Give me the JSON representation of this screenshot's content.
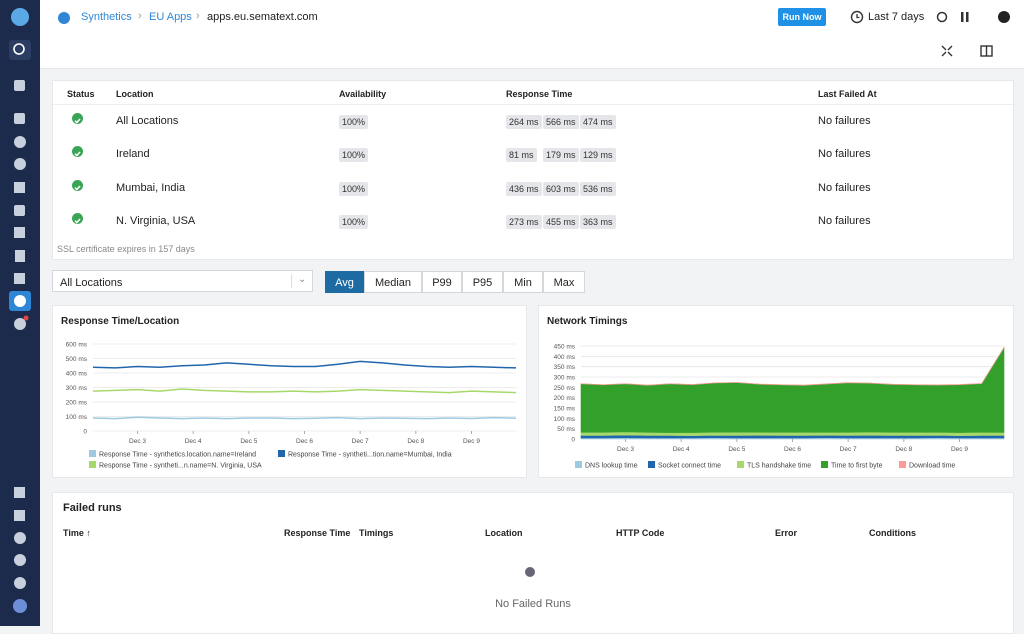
{
  "breadcrumb": [
    "Synthetics",
    "EU Apps",
    "apps.eu.sematext.com"
  ],
  "header": {
    "run_now": "Run Now",
    "time_range": "Last 7 days"
  },
  "status_table": {
    "headers": [
      "Status",
      "Location",
      "Availability",
      "Response Time",
      "Last Failed At"
    ],
    "rows": [
      {
        "location": "All Locations",
        "availability": "100%",
        "response_times": [
          "264 ms",
          "566 ms",
          "474 ms"
        ],
        "last_failed": "No failures"
      },
      {
        "location": "Ireland",
        "availability": "100%",
        "response_times": [
          "81 ms",
          "179 ms",
          "129 ms"
        ],
        "last_failed": "No failures"
      },
      {
        "location": "Mumbai, India",
        "availability": "100%",
        "response_times": [
          "436 ms",
          "603 ms",
          "536 ms"
        ],
        "last_failed": "No failures"
      },
      {
        "location": "N. Virginia, USA",
        "availability": "100%",
        "response_times": [
          "273 ms",
          "455 ms",
          "363 ms"
        ],
        "last_failed": "No failures"
      }
    ],
    "note": "SSL certificate expires in 157 days"
  },
  "filter": {
    "location": "All Locations",
    "tabs": [
      "Avg",
      "Median",
      "P99",
      "P95",
      "Min",
      "Max"
    ],
    "active": "Avg"
  },
  "charts": [
    {
      "type": "line",
      "title": "Response Time/Location",
      "grid": true,
      "x": [
        2.2,
        2.6,
        3.0,
        3.4,
        3.8,
        4.2,
        4.6,
        5.0,
        5.4,
        5.8,
        6.2,
        6.6,
        7.0,
        7.4,
        7.8,
        8.2,
        8.6,
        9.0,
        9.4,
        9.8
      ],
      "xlim": [
        2.2,
        9.8
      ],
      "xticks": [
        {
          "value": 3,
          "label": "Dec 3"
        },
        {
          "value": 4,
          "label": "Dec 4"
        },
        {
          "value": 5,
          "label": "Dec 5"
        },
        {
          "value": 6,
          "label": "Dec 6"
        },
        {
          "value": 7,
          "label": "Dec 7"
        },
        {
          "value": 8,
          "label": "Dec 8"
        },
        {
          "value": 9,
          "label": "Dec 9"
        }
      ],
      "ylim": [
        0,
        600
      ],
      "yticks": [
        0,
        {
          "value": 100,
          "label": "100 ms"
        },
        {
          "value": 200,
          "label": "200 ms"
        },
        {
          "value": 300,
          "label": "300 ms"
        },
        {
          "value": 400,
          "label": "400 ms"
        },
        {
          "value": 500,
          "label": "500 ms"
        },
        {
          "value": 600,
          "label": "600 ms"
        }
      ],
      "series": [
        {
          "name": "Response Time - synthetics.location.name=Ireland",
          "color": "#9ecae1",
          "values": [
            90,
            85,
            95,
            90,
            85,
            90,
            85,
            90,
            90,
            85,
            88,
            92,
            85,
            90,
            88,
            85,
            90,
            86,
            92,
            88
          ]
        },
        {
          "name": "Response Time - syntheti...tion.name=Mumbai, India",
          "color": "#2166ac",
          "values": [
            440,
            435,
            445,
            440,
            450,
            455,
            470,
            460,
            450,
            445,
            445,
            460,
            480,
            470,
            455,
            445,
            440,
            445,
            440,
            435
          ]
        },
        {
          "name": "Response Time - syntheti...n.name=N. Virginia, USA",
          "color": "#a6d96a",
          "values": [
            275,
            280,
            285,
            275,
            290,
            280,
            275,
            270,
            270,
            275,
            270,
            275,
            285,
            280,
            275,
            270,
            265,
            275,
            270,
            265
          ]
        }
      ]
    },
    {
      "type": "stacked-area",
      "title": "Network Timings",
      "grid": true,
      "x": [
        2.2,
        2.6,
        3.0,
        3.4,
        3.8,
        4.2,
        4.6,
        5.0,
        5.4,
        5.8,
        6.2,
        6.6,
        7.0,
        7.4,
        7.8,
        8.2,
        8.6,
        9.0,
        9.4,
        9.8
      ],
      "xlim": [
        2.2,
        9.8
      ],
      "xticks": [
        {
          "value": 3,
          "label": "Dec 3"
        },
        {
          "value": 4,
          "label": "Dec 4"
        },
        {
          "value": 5,
          "label": "Dec 5"
        },
        {
          "value": 6,
          "label": "Dec 6"
        },
        {
          "value": 7,
          "label": "Dec 7"
        },
        {
          "value": 8,
          "label": "Dec 8"
        },
        {
          "value": 9,
          "label": "Dec 9"
        }
      ],
      "ylim": [
        0,
        450
      ],
      "yticks": [
        0,
        {
          "value": 50,
          "label": "50 ms"
        },
        {
          "value": 100,
          "label": "100 ms"
        },
        {
          "value": 150,
          "label": "150 ms"
        },
        {
          "value": 200,
          "label": "200 ms"
        },
        {
          "value": 250,
          "label": "250 ms"
        },
        {
          "value": 300,
          "label": "300 ms"
        },
        {
          "value": 350,
          "label": "350 ms"
        },
        {
          "value": 400,
          "label": "400 ms"
        },
        {
          "value": 450,
          "label": "450 ms"
        }
      ],
      "series": [
        {
          "name": "DNS lookup time",
          "color": "#9ecae1",
          "values": [
            5,
            5,
            6,
            5,
            5,
            5,
            6,
            5,
            5,
            5,
            5,
            6,
            5,
            5,
            5,
            5,
            6,
            5,
            5,
            5
          ]
        },
        {
          "name": "Socket connect time",
          "color": "#2166ac",
          "values": [
            12,
            12,
            13,
            12,
            12,
            11,
            12,
            12,
            13,
            12,
            12,
            12,
            12,
            13,
            12,
            12,
            12,
            11,
            12,
            12
          ]
        },
        {
          "name": "TLS handshake time",
          "color": "#a6d96a",
          "values": [
            15,
            15,
            16,
            15,
            14,
            15,
            15,
            16,
            15,
            15,
            15,
            14,
            15,
            16,
            15,
            15,
            15,
            15,
            16,
            15
          ]
        },
        {
          "name": "Time to first byte",
          "color": "#33a02c",
          "values": [
            235,
            230,
            232,
            228,
            236,
            232,
            238,
            240,
            232,
            230,
            228,
            234,
            240,
            236,
            232,
            230,
            228,
            232,
            235,
            410
          ]
        },
        {
          "name": "Download time",
          "color": "#fb9a99",
          "values": [
            1,
            1,
            1,
            1,
            1,
            1,
            1,
            1,
            1,
            1,
            1,
            1,
            1,
            1,
            1,
            1,
            1,
            1,
            1,
            1
          ]
        }
      ]
    }
  ],
  "failed_runs": {
    "title": "Failed runs",
    "headers": [
      "Time ↑",
      "Response Time",
      "Timings",
      "Location",
      "HTTP Code",
      "Error",
      "Conditions"
    ],
    "empty": "No Failed Runs"
  }
}
